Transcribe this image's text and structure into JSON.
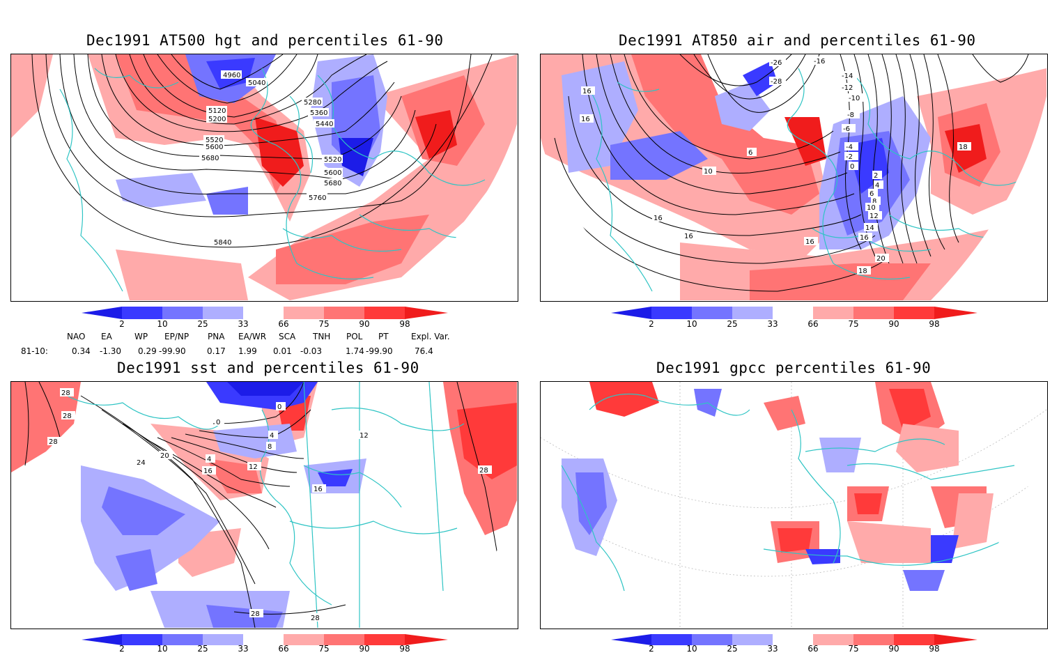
{
  "panels": [
    {
      "id": "z500",
      "title": "Dec1991 AT500 hgt and percentiles 61-90",
      "contour_labels": [
        "4960",
        "5040",
        "5120",
        "5200",
        "5280",
        "5360",
        "5440",
        "5520",
        "5600",
        "5680",
        "5520",
        "5600",
        "5680",
        "5760",
        "5840"
      ]
    },
    {
      "id": "t850",
      "title": "Dec1991 AT850 air and percentiles 61-90",
      "contour_labels": [
        "-26",
        "-28",
        "-16",
        "-14",
        "-12",
        "-10",
        "-8",
        "-6",
        "-4",
        "-2",
        "0",
        "2",
        "4",
        "6",
        "8",
        "10",
        "12",
        "14",
        "16",
        "16",
        "16",
        "16",
        "16",
        "16",
        "18",
        "18",
        "20",
        "6",
        "10"
      ]
    },
    {
      "id": "sst",
      "title": "Dec1991 sst and percentiles 61-90",
      "contour_labels": [
        "28",
        "28",
        "28",
        "24",
        "20",
        "16",
        "12",
        "4",
        "4",
        "8",
        "0",
        "0",
        "16",
        "12",
        "28",
        "28",
        "28"
      ]
    },
    {
      "id": "gpcc",
      "title": "Dec1991 gpcc percentiles 61-90",
      "contour_labels": []
    }
  ],
  "colorbar": {
    "labels": [
      "2",
      "10",
      "25",
      "33",
      "66",
      "75",
      "90",
      "98"
    ],
    "colors": [
      "#1c1ce8",
      "#3a3aff",
      "#7474ff",
      "#aeaeff",
      "#ffffff",
      "#ffaaaa",
      "#ff7474",
      "#ff3a3a",
      "#f01c1c"
    ]
  },
  "indices": {
    "header": [
      "NAO",
      "EA",
      "WP",
      "EP/NP",
      "PNA",
      "EA/WR",
      "SCA",
      "TNH",
      "POL",
      "PT",
      "Expl. Var."
    ],
    "row_label": "81-10:",
    "values": [
      "0.34",
      "-1.30",
      "0.29",
      "-99.90",
      "0.17",
      "1.99",
      "0.01",
      "-0.03",
      "1.74",
      "-99.90",
      "76.4"
    ]
  }
}
